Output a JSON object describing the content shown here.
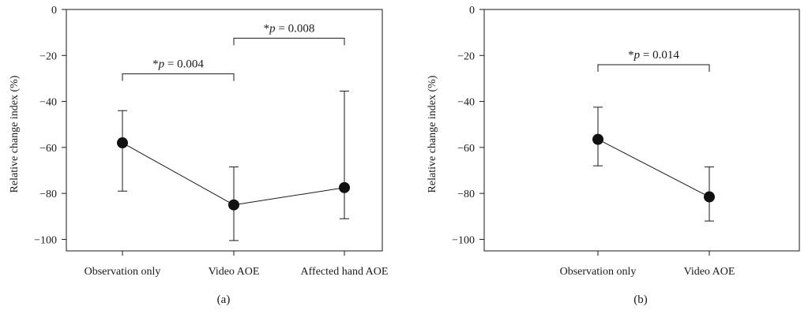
{
  "chart_data": [
    {
      "type": "line",
      "panel_label": "(a)",
      "ylabel": "Relative change index (%)",
      "ylim": [
        -105,
        0
      ],
      "yticks": [
        0,
        -20,
        -40,
        -60,
        -80,
        -100
      ],
      "ytick_labels": [
        "0",
        "−20",
        "−40",
        "−60",
        "−80",
        "−100"
      ],
      "categories": [
        "Observation only",
        "Video AOE",
        "Affected hand AOE"
      ],
      "values": [
        -58,
        -85,
        -77.5
      ],
      "error_upper": [
        -44,
        -68.5,
        -35.5
      ],
      "error_lower": [
        -79,
        -100.5,
        -91
      ],
      "grid": false,
      "annotations": [
        {
          "from": 0,
          "to": 1,
          "y": -28,
          "label": "*p = 0.004",
          "star": "*",
          "text": " = 0.004"
        },
        {
          "from": 1,
          "to": 2,
          "y": -12.5,
          "label": "*p = 0.008",
          "star": "*",
          "text": " = 0.008"
        }
      ]
    },
    {
      "type": "line",
      "panel_label": "(b)",
      "ylabel": "Relative change index (%)",
      "ylim": [
        -105,
        0
      ],
      "yticks": [
        0,
        -20,
        -40,
        -60,
        -80,
        -100
      ],
      "ytick_labels": [
        "0",
        "−20",
        "−40",
        "−60",
        "−80",
        "−100"
      ],
      "categories": [
        "Observation only",
        "Video AOE"
      ],
      "values": [
        -56.5,
        -81.5
      ],
      "error_upper": [
        -42.5,
        -68.5
      ],
      "error_lower": [
        -68,
        -92
      ],
      "grid": false,
      "annotations": [
        {
          "from": 0,
          "to": 1,
          "y": -24,
          "label": "*p = 0.014",
          "star": "*",
          "text": " = 0.014"
        }
      ]
    }
  ]
}
